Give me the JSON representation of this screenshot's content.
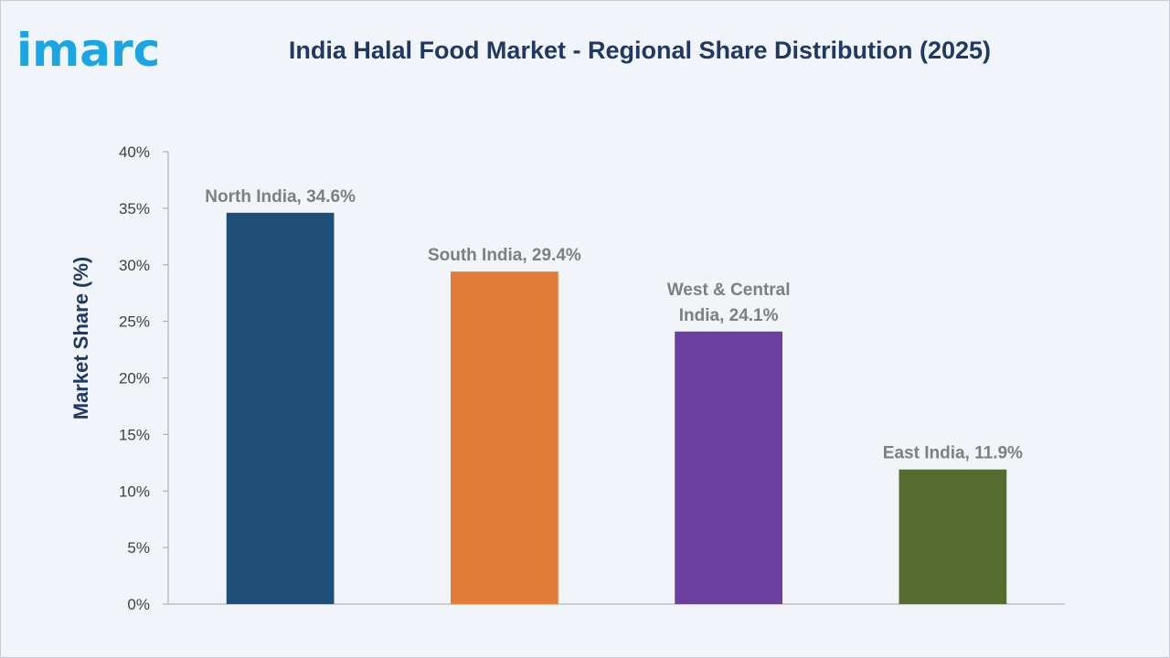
{
  "header": {
    "logo_text": "imarc",
    "title": "India Halal Food Market - Regional Share Distribution (2025)"
  },
  "chart_data": {
    "type": "bar",
    "title": "India Halal Food Market - Regional Share Distribution (2025)",
    "categories": [
      "North India",
      "South India",
      "West & Central India",
      "East India"
    ],
    "values": [
      34.6,
      29.4,
      24.1,
      11.9
    ],
    "data_labels": [
      [
        "North India, 34.6%"
      ],
      [
        "South India, 29.4%"
      ],
      [
        "West & Central",
        "India, 24.1%"
      ],
      [
        "East India, 11.9%"
      ]
    ],
    "colors": [
      "#1f4e79",
      "#e07b39",
      "#6b3fa0",
      "#556b2f"
    ],
    "xlabel": "",
    "ylabel": "Market Share (%)",
    "ylim": [
      0,
      40
    ],
    "yticks": [
      0,
      5,
      10,
      15,
      20,
      25,
      30,
      35,
      40
    ],
    "ytick_suffix": "%",
    "grid": false,
    "legend": "none"
  }
}
